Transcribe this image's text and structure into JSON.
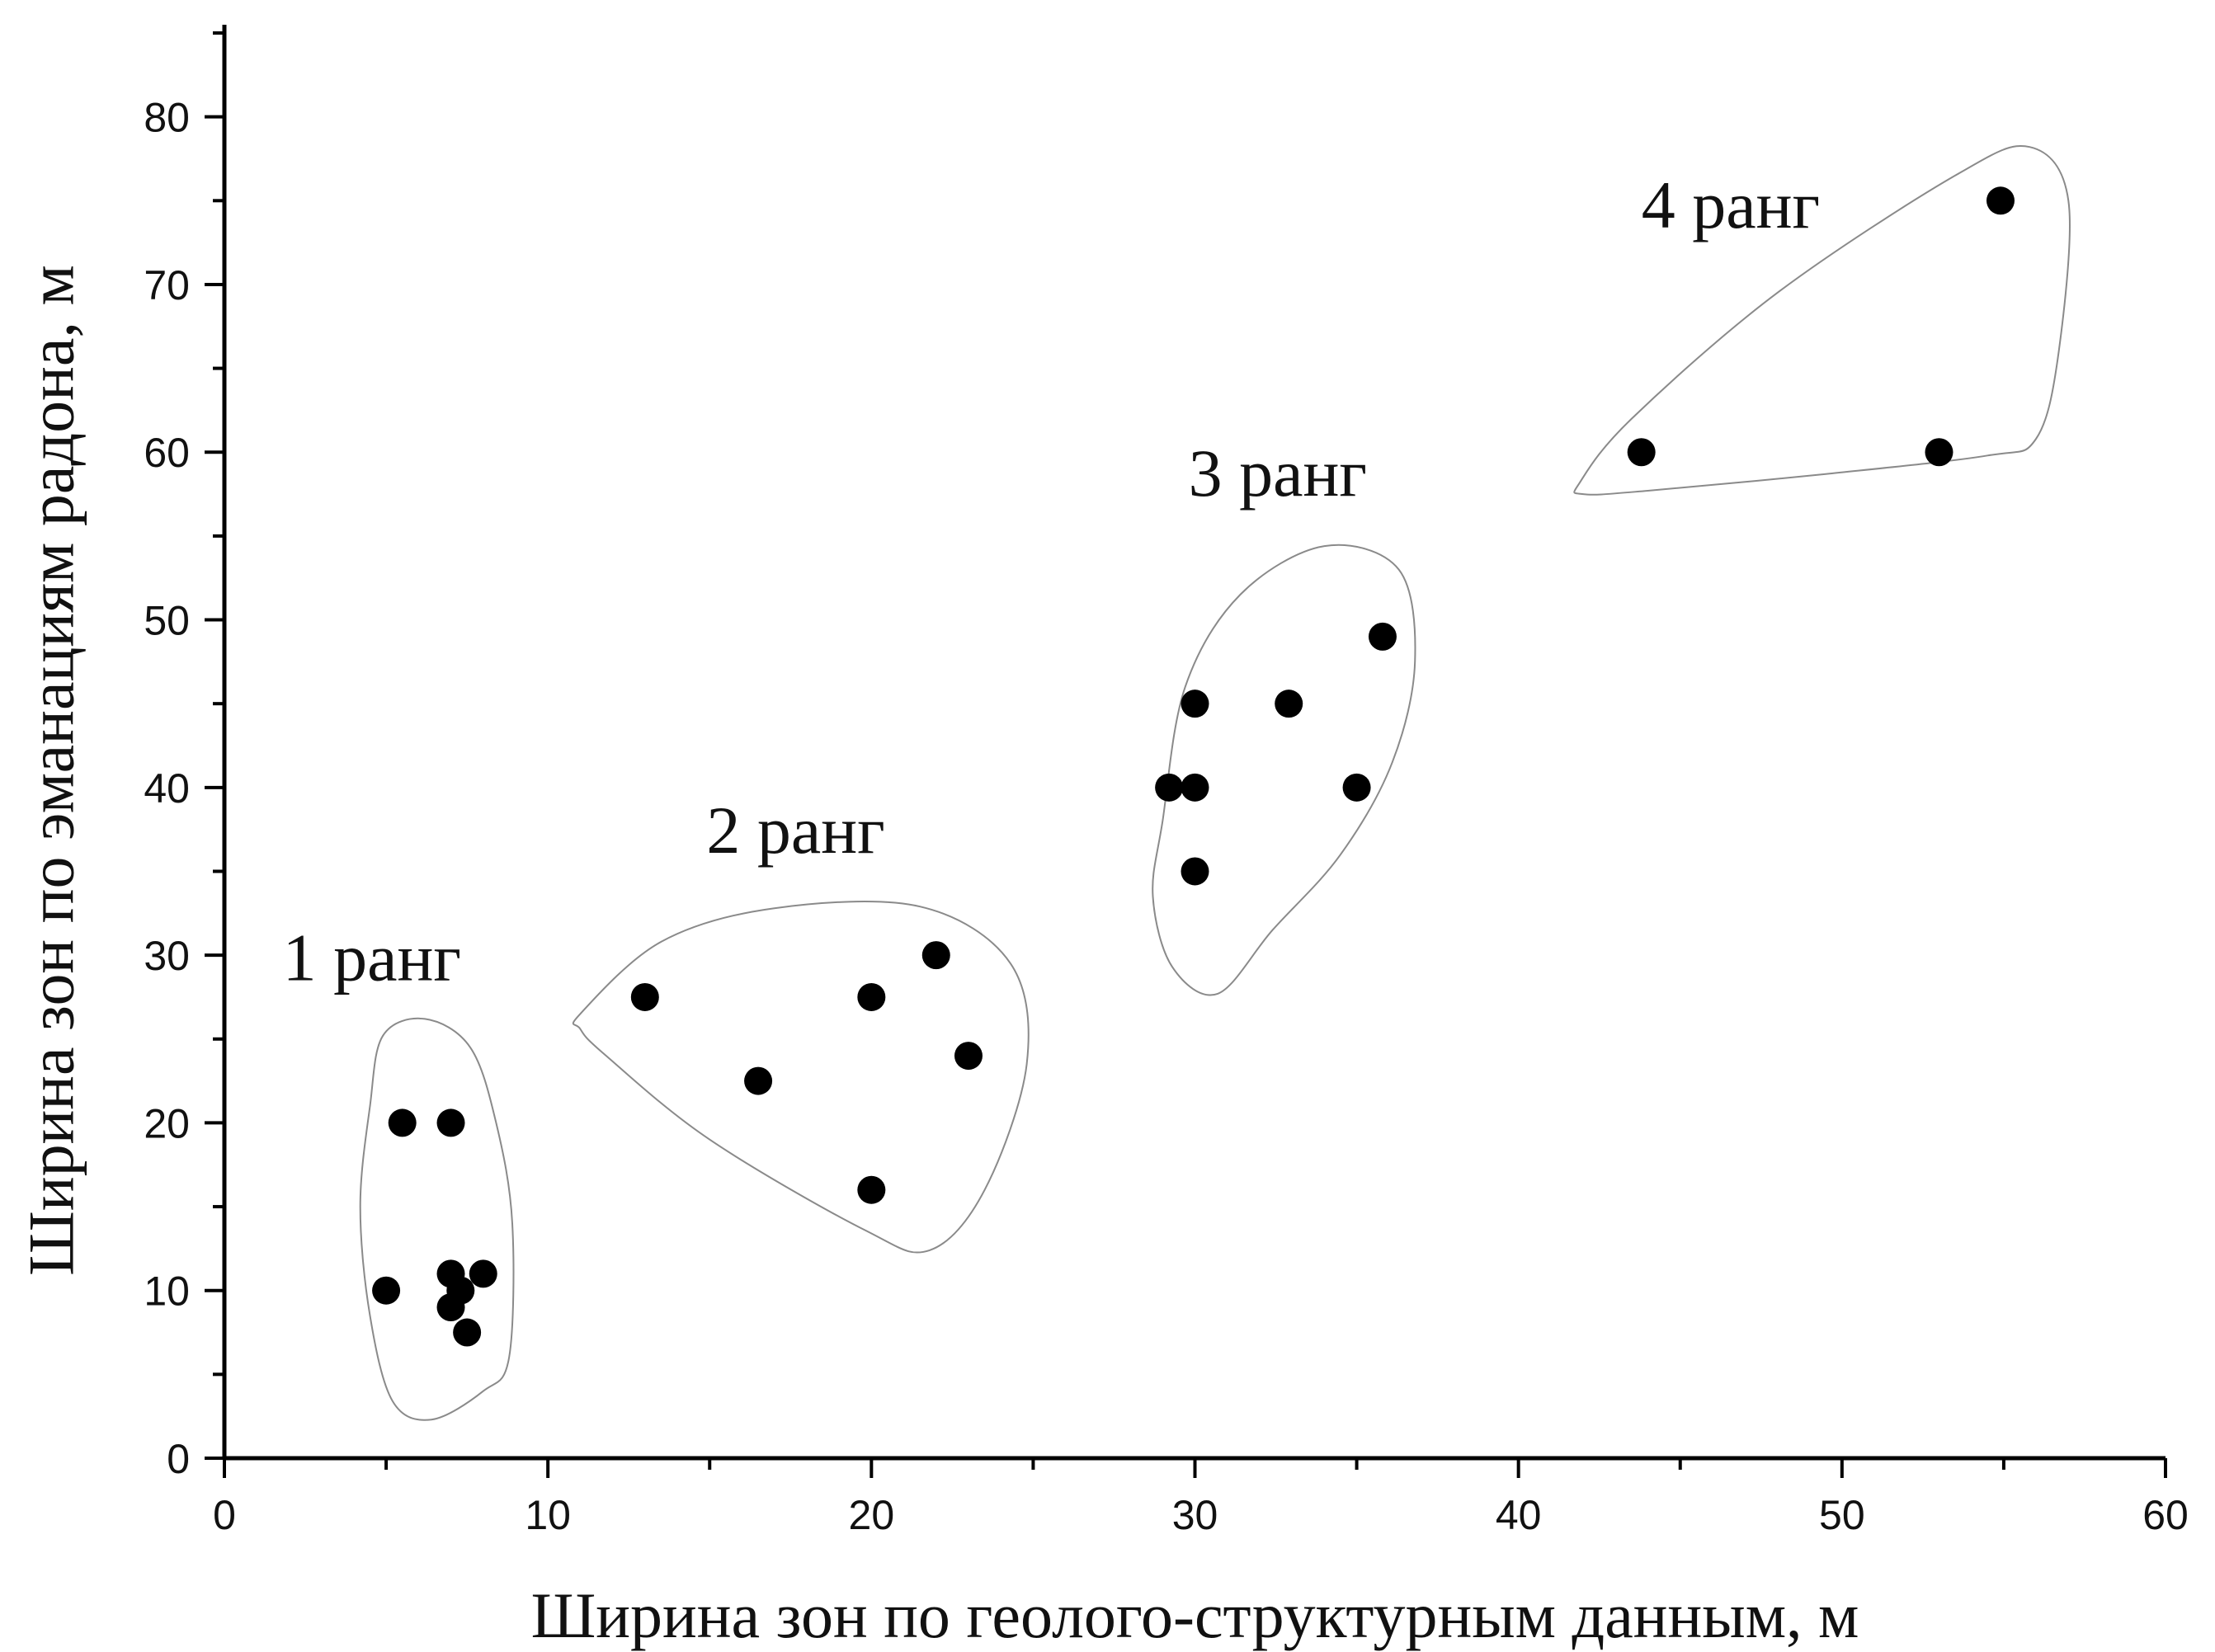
{
  "chart_data": {
    "type": "scatter",
    "xlabel": "Ширина зон по геолого-структурным данным, м",
    "ylabel": "Ширина зон по эманациям радона, м",
    "xlim": [
      0,
      60
    ],
    "ylim": [
      0,
      85
    ],
    "x_ticks": [
      0,
      10,
      20,
      30,
      40,
      50,
      60
    ],
    "y_ticks": [
      0,
      10,
      20,
      30,
      40,
      50,
      60,
      70,
      80
    ],
    "x_minor_step": 5,
    "y_minor_step": 5,
    "grid": false,
    "marker_color": "#000000",
    "outline_color": "#8a8a8a",
    "groups": [
      {
        "label": "1 ранг",
        "label_anchor": [
          1.8,
          28.5
        ],
        "outline": [
          [
            4.9,
            25.2
          ],
          [
            6.2,
            26.2
          ],
          [
            7.6,
            24.5
          ],
          [
            8.4,
            20
          ],
          [
            8.9,
            14
          ],
          [
            8.8,
            6
          ],
          [
            8.0,
            4.0
          ],
          [
            6.4,
            2.3
          ],
          [
            5.2,
            3.4
          ],
          [
            4.5,
            8.5
          ],
          [
            4.2,
            15
          ],
          [
            4.5,
            21
          ]
        ],
        "points": [
          [
            5.0,
            10
          ],
          [
            5.5,
            20
          ],
          [
            7.0,
            20
          ],
          [
            7.0,
            11
          ],
          [
            7.0,
            9
          ],
          [
            7.3,
            10
          ],
          [
            7.5,
            7.5
          ],
          [
            8.0,
            11
          ]
        ]
      },
      {
        "label": "2 ранг",
        "label_anchor": [
          14.9,
          36.1
        ],
        "outline": [
          [
            11.0,
            26.5
          ],
          [
            13.5,
            30.8
          ],
          [
            17.0,
            32.8
          ],
          [
            21.5,
            32.9
          ],
          [
            24.3,
            29.5
          ],
          [
            24.8,
            23.5
          ],
          [
            23.5,
            16.0
          ],
          [
            21.8,
            12.4
          ],
          [
            19.8,
            13.6
          ],
          [
            15.0,
            19.0
          ],
          [
            11.8,
            24.0
          ],
          [
            11.0,
            25.6
          ]
        ],
        "points": [
          [
            13.0,
            27.5
          ],
          [
            16.5,
            22.5
          ],
          [
            20.0,
            27.5
          ],
          [
            22.0,
            30
          ],
          [
            23.0,
            24
          ],
          [
            20.0,
            16
          ]
        ]
      },
      {
        "label": "3 ранг",
        "label_anchor": [
          29.8,
          57.4
        ],
        "outline": [
          [
            29.0,
            38.0
          ],
          [
            29.7,
            46.0
          ],
          [
            31.4,
            51.5
          ],
          [
            34.0,
            54.4
          ],
          [
            36.3,
            53.0
          ],
          [
            36.8,
            47.5
          ],
          [
            36.1,
            41.5
          ],
          [
            34.5,
            36.0
          ],
          [
            32.4,
            31.5
          ],
          [
            30.7,
            27.7
          ],
          [
            29.3,
            29.3
          ],
          [
            28.7,
            33.5
          ]
        ],
        "points": [
          [
            29.2,
            40
          ],
          [
            30.0,
            45
          ],
          [
            30.0,
            40
          ],
          [
            30.0,
            35
          ],
          [
            32.9,
            45
          ],
          [
            35.0,
            40
          ],
          [
            35.8,
            49
          ]
        ]
      },
      {
        "label": "4 ранг",
        "label_anchor": [
          43.8,
          73.4
        ],
        "outline": [
          [
            41.9,
            58.2
          ],
          [
            43.5,
            62.0
          ],
          [
            48.0,
            69.5
          ],
          [
            53.5,
            76.5
          ],
          [
            55.8,
            78.2
          ],
          [
            57.0,
            75.0
          ],
          [
            56.7,
            66.0
          ],
          [
            56.0,
            60.8
          ],
          [
            54.5,
            59.8
          ],
          [
            49.5,
            58.7
          ],
          [
            44.0,
            57.7
          ],
          [
            42.0,
            57.5
          ]
        ],
        "points": [
          [
            43.8,
            60
          ],
          [
            53.0,
            60
          ],
          [
            54.9,
            75
          ]
        ]
      }
    ]
  }
}
